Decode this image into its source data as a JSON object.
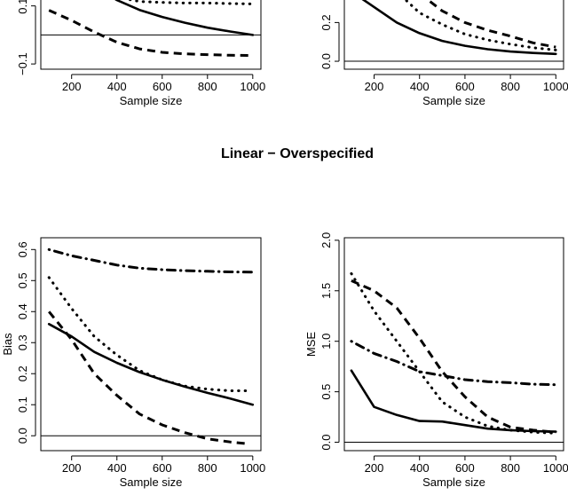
{
  "figure_title": "Linear − Overspecified",
  "chart_data": [
    {
      "type": "line",
      "panel": "top-left (partially visible)",
      "xlabel": "Sample size",
      "ylabel": "",
      "xlim": [
        64,
        1036
      ],
      "ylim": [
        -0.118,
        0.655
      ],
      "xticks": [
        200,
        400,
        600,
        800,
        1000
      ],
      "yticks": [
        {
          "v": -0.1,
          "label": "−0.1"
        },
        {
          "v": 0.1,
          "label": "0.1"
        }
      ],
      "hline": 0,
      "series": [
        {
          "name": "solid",
          "style": "solid",
          "x": [
            300,
            400,
            500,
            600,
            700,
            800,
            900,
            1000
          ],
          "y": [
            0.17,
            0.12,
            0.086,
            0.062,
            0.042,
            0.025,
            0.012,
            0.0
          ]
        },
        {
          "name": "dotted",
          "style": "dotted",
          "x": [
            400,
            500,
            600,
            700,
            800,
            900,
            1000
          ],
          "y": [
            0.13,
            0.115,
            0.112,
            0.11,
            0.11,
            0.108,
            0.107
          ]
        },
        {
          "name": "dashed",
          "style": "dashed",
          "x": [
            100,
            200,
            300,
            400,
            500,
            600,
            700,
            800,
            900,
            1000
          ],
          "y": [
            0.085,
            0.05,
            0.01,
            -0.025,
            -0.048,
            -0.06,
            -0.065,
            -0.068,
            -0.07,
            -0.071
          ]
        }
      ]
    },
    {
      "type": "line",
      "panel": "top-right (partially visible)",
      "xlabel": "Sample size",
      "ylabel": "",
      "xlim": [
        69,
        1034
      ],
      "ylim": [
        -0.041,
        1.118
      ],
      "xticks": [
        200,
        400,
        600,
        800,
        1000
      ],
      "yticks": [
        {
          "v": 0.0,
          "label": "0.0"
        },
        {
          "v": 0.2,
          "label": "0.2"
        }
      ],
      "hline": 0,
      "series": [
        {
          "name": "solid",
          "style": "solid",
          "x": [
            100,
            200,
            300,
            400,
            500,
            600,
            700,
            800,
            900,
            1000
          ],
          "y": [
            0.36,
            0.28,
            0.2,
            0.145,
            0.105,
            0.08,
            0.062,
            0.05,
            0.043,
            0.038
          ]
        },
        {
          "name": "dotted",
          "style": "dotted",
          "x": [
            300,
            400,
            500,
            600,
            700,
            800,
            900,
            1000
          ],
          "y": [
            0.36,
            0.25,
            0.19,
            0.14,
            0.11,
            0.088,
            0.07,
            0.058
          ]
        },
        {
          "name": "dashed",
          "style": "dashed",
          "x": [
            400,
            500,
            600,
            700,
            800,
            900,
            1000
          ],
          "y": [
            0.35,
            0.26,
            0.2,
            0.16,
            0.13,
            0.095,
            0.073
          ]
        }
      ]
    },
    {
      "type": "line",
      "panel": "bottom-left",
      "xlabel": "Sample size",
      "ylabel": "Bias",
      "xlim": [
        64,
        1036
      ],
      "ylim": [
        -0.048,
        0.638
      ],
      "xticks": [
        200,
        400,
        600,
        800,
        1000
      ],
      "yticks": [
        {
          "v": 0.0,
          "label": "0.0"
        },
        {
          "v": 0.1,
          "label": "0.1"
        },
        {
          "v": 0.2,
          "label": "0.2"
        },
        {
          "v": 0.3,
          "label": "0.3"
        },
        {
          "v": 0.4,
          "label": "0.4"
        },
        {
          "v": 0.5,
          "label": "0.5"
        },
        {
          "v": 0.6,
          "label": "0.6"
        }
      ],
      "hline": 0,
      "series": [
        {
          "name": "dot-dash",
          "style": "dotdash",
          "x": [
            100,
            200,
            300,
            400,
            500,
            600,
            700,
            800,
            900,
            1000
          ],
          "y": [
            0.6,
            0.58,
            0.565,
            0.55,
            0.54,
            0.535,
            0.532,
            0.53,
            0.528,
            0.527
          ]
        },
        {
          "name": "dotted",
          "style": "dotted",
          "x": [
            100,
            200,
            300,
            400,
            500,
            600,
            700,
            800,
            900,
            970
          ],
          "y": [
            0.51,
            0.41,
            0.32,
            0.26,
            0.21,
            0.18,
            0.16,
            0.15,
            0.145,
            0.145
          ]
        },
        {
          "name": "solid",
          "style": "solid",
          "x": [
            100,
            200,
            300,
            400,
            500,
            600,
            700,
            800,
            900,
            1000
          ],
          "y": [
            0.36,
            0.32,
            0.27,
            0.235,
            0.205,
            0.18,
            0.158,
            0.138,
            0.12,
            0.1
          ]
        },
        {
          "name": "dashed",
          "style": "dashed",
          "x": [
            100,
            200,
            300,
            400,
            500,
            600,
            700,
            800,
            900,
            970
          ],
          "y": [
            0.4,
            0.31,
            0.2,
            0.13,
            0.07,
            0.035,
            0.01,
            -0.01,
            -0.02,
            -0.025
          ]
        }
      ]
    },
    {
      "type": "line",
      "panel": "bottom-right",
      "xlabel": "Sample size",
      "ylabel": "MSE",
      "xlim": [
        69,
        1034
      ],
      "ylim": [
        -0.083,
        2.025
      ],
      "xticks": [
        200,
        400,
        600,
        800,
        1000
      ],
      "yticks": [
        {
          "v": 0.0,
          "label": "0.0"
        },
        {
          "v": 0.5,
          "label": "0.5"
        },
        {
          "v": 1.0,
          "label": "1.0"
        },
        {
          "v": 1.5,
          "label": "1.5"
        },
        {
          "v": 2.0,
          "label": "2.0"
        }
      ],
      "hline": 0,
      "series": [
        {
          "name": "solid",
          "style": "solid",
          "x": [
            100,
            200,
            300,
            400,
            500,
            600,
            700,
            800,
            900,
            1000
          ],
          "y": [
            0.71,
            0.35,
            0.27,
            0.21,
            0.205,
            0.17,
            0.135,
            0.12,
            0.11,
            0.105
          ]
        },
        {
          "name": "dotted",
          "style": "dotted",
          "x": [
            100,
            200,
            300,
            400,
            500,
            600,
            700,
            800,
            900,
            1000
          ],
          "y": [
            1.67,
            1.3,
            1.0,
            0.7,
            0.4,
            0.25,
            0.16,
            0.12,
            0.1,
            0.09
          ]
        },
        {
          "name": "dashed",
          "style": "dashed",
          "x": [
            100,
            200,
            300,
            400,
            500,
            600,
            700,
            800,
            900,
            1000
          ],
          "y": [
            1.6,
            1.5,
            1.33,
            1.03,
            0.7,
            0.45,
            0.25,
            0.15,
            0.12,
            0.1
          ]
        },
        {
          "name": "dot-dash",
          "style": "dotdash",
          "x": [
            100,
            200,
            300,
            400,
            500,
            600,
            700,
            800,
            900,
            1000
          ],
          "y": [
            1.0,
            0.88,
            0.8,
            0.7,
            0.66,
            0.62,
            0.6,
            0.59,
            0.575,
            0.57
          ]
        }
      ]
    }
  ]
}
